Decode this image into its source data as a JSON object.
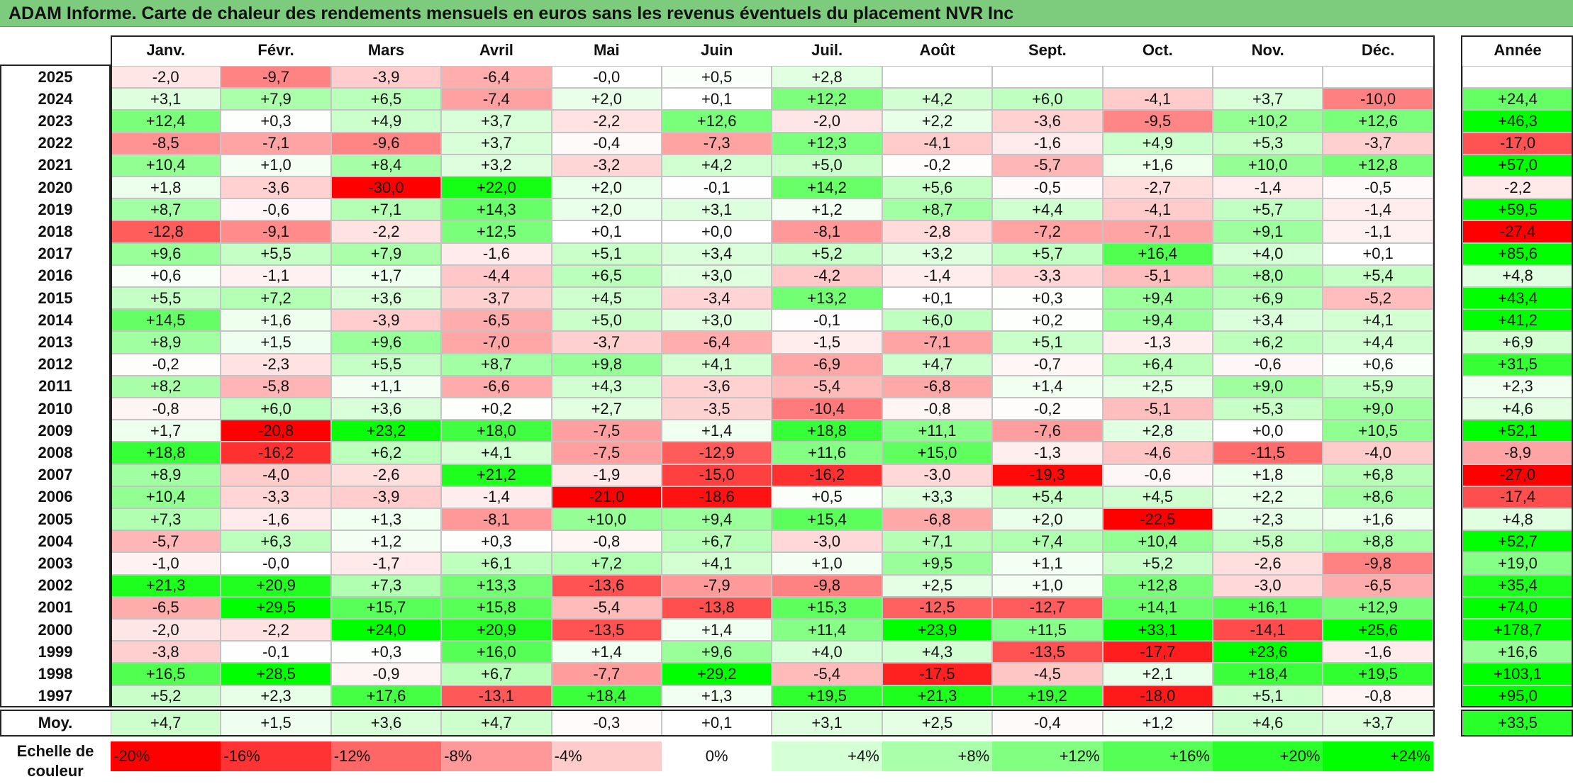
{
  "title": "ADAM Informe. Carte de chaleur des rendements mensuels en euros sans les revenus éventuels du placement NVR Inc",
  "chart_data": {
    "type": "heatmap",
    "title": "ADAM Informe. Carte de chaleur des rendements mensuels en euros sans les revenus éventuels du placement NVR Inc",
    "columns": [
      "Janv.",
      "Févr.",
      "Mars",
      "Avril",
      "Mai",
      "Juin",
      "Juil.",
      "Août",
      "Sept.",
      "Oct.",
      "Nov.",
      "Déc."
    ],
    "year_column_label": "Année",
    "rows": [
      {
        "year": "2025",
        "values": [
          "-2,0",
          "-9,7",
          "-3,9",
          "-6,4",
          "-0,0",
          "+0,5",
          "+2,8",
          "",
          "",
          "",
          "",
          ""
        ],
        "annual": ""
      },
      {
        "year": "2024",
        "values": [
          "+3,1",
          "+7,9",
          "+6,5",
          "-7,4",
          "+2,0",
          "+0,1",
          "+12,2",
          "+4,2",
          "+6,0",
          "-4,1",
          "+3,7",
          "-10,0"
        ],
        "annual": "+24,4"
      },
      {
        "year": "2023",
        "values": [
          "+12,4",
          "+0,3",
          "+4,9",
          "+3,7",
          "-2,2",
          "+12,6",
          "-2,0",
          "+2,2",
          "-3,6",
          "-9,5",
          "+10,2",
          "+12,6"
        ],
        "annual": "+46,3"
      },
      {
        "year": "2022",
        "values": [
          "-8,5",
          "-7,1",
          "-9,6",
          "+3,7",
          "-0,4",
          "-7,3",
          "+12,3",
          "-4,1",
          "-1,6",
          "+4,9",
          "+5,3",
          "-3,7"
        ],
        "annual": "-17,0"
      },
      {
        "year": "2021",
        "values": [
          "+10,4",
          "+1,0",
          "+8,4",
          "+3,2",
          "-3,2",
          "+4,2",
          "+5,0",
          "-0,2",
          "-5,7",
          "+1,6",
          "+10,0",
          "+12,8"
        ],
        "annual": "+57,0"
      },
      {
        "year": "2020",
        "values": [
          "+1,8",
          "-3,6",
          "-30,0",
          "+22,0",
          "+2,0",
          "-0,1",
          "+14,2",
          "+5,6",
          "-0,5",
          "-2,7",
          "-1,4",
          "-0,5"
        ],
        "annual": "-2,2"
      },
      {
        "year": "2019",
        "values": [
          "+8,7",
          "-0,6",
          "+7,1",
          "+14,3",
          "+2,0",
          "+3,1",
          "+1,2",
          "+8,7",
          "+4,4",
          "-4,1",
          "+5,7",
          "-1,4"
        ],
        "annual": "+59,5"
      },
      {
        "year": "2018",
        "values": [
          "-12,8",
          "-9,1",
          "-2,2",
          "+12,5",
          "+0,1",
          "+0,0",
          "-8,1",
          "-2,8",
          "-7,2",
          "-7,1",
          "+9,1",
          "-1,1"
        ],
        "annual": "-27,4"
      },
      {
        "year": "2017",
        "values": [
          "+9,6",
          "+5,5",
          "+7,9",
          "-1,6",
          "+5,1",
          "+3,4",
          "+5,2",
          "+3,2",
          "+5,7",
          "+16,4",
          "+4,0",
          "+0,1"
        ],
        "annual": "+85,6"
      },
      {
        "year": "2016",
        "values": [
          "+0,6",
          "-1,1",
          "+1,7",
          "-4,4",
          "+6,5",
          "+3,0",
          "-4,2",
          "-1,4",
          "-3,3",
          "-5,1",
          "+8,0",
          "+5,4"
        ],
        "annual": "+4,8"
      },
      {
        "year": "2015",
        "values": [
          "+5,5",
          "+7,2",
          "+3,6",
          "-3,7",
          "+4,5",
          "-3,4",
          "+13,2",
          "+0,1",
          "+0,3",
          "+9,4",
          "+6,9",
          "-5,2"
        ],
        "annual": "+43,4"
      },
      {
        "year": "2014",
        "values": [
          "+14,5",
          "+1,6",
          "-3,9",
          "-6,5",
          "+5,0",
          "+3,0",
          "-0,1",
          "+6,0",
          "+0,2",
          "+9,4",
          "+3,4",
          "+4,1"
        ],
        "annual": "+41,2"
      },
      {
        "year": "2013",
        "values": [
          "+8,9",
          "+1,5",
          "+9,6",
          "-7,0",
          "-3,7",
          "-6,4",
          "-1,5",
          "-7,1",
          "+5,1",
          "-1,3",
          "+6,2",
          "+4,4"
        ],
        "annual": "+6,9"
      },
      {
        "year": "2012",
        "values": [
          "-0,2",
          "-2,3",
          "+5,5",
          "+8,7",
          "+9,8",
          "+4,1",
          "-6,9",
          "+4,7",
          "-0,7",
          "+6,4",
          "-0,6",
          "+0,6"
        ],
        "annual": "+31,5"
      },
      {
        "year": "2011",
        "values": [
          "+8,2",
          "-5,8",
          "+1,1",
          "-6,6",
          "+4,3",
          "-3,6",
          "-5,4",
          "-6,8",
          "+1,4",
          "+2,5",
          "+9,0",
          "+5,9"
        ],
        "annual": "+2,3"
      },
      {
        "year": "2010",
        "values": [
          "-0,8",
          "+6,0",
          "+3,6",
          "+0,2",
          "+2,7",
          "-3,5",
          "-10,4",
          "-0,8",
          "-0,2",
          "-5,1",
          "+5,3",
          "+9,0"
        ],
        "annual": "+4,6"
      },
      {
        "year": "2009",
        "values": [
          "+1,7",
          "-20,8",
          "+23,2",
          "+18,0",
          "-7,5",
          "+1,4",
          "+18,8",
          "+11,1",
          "-7,6",
          "+2,8",
          "+0,0",
          "+10,5"
        ],
        "annual": "+52,1"
      },
      {
        "year": "2008",
        "values": [
          "+18,8",
          "-16,2",
          "+6,2",
          "+4,1",
          "-7,5",
          "-12,9",
          "+11,6",
          "+15,0",
          "-1,3",
          "-4,6",
          "-11,5",
          "-4,0"
        ],
        "annual": "-8,9"
      },
      {
        "year": "2007",
        "values": [
          "+8,9",
          "-4,0",
          "-2,6",
          "+21,2",
          "-1,9",
          "-15,0",
          "-16,2",
          "-3,0",
          "-19,3",
          "-0,6",
          "+1,8",
          "+6,8"
        ],
        "annual": "-27,0"
      },
      {
        "year": "2006",
        "values": [
          "+10,4",
          "-3,3",
          "-3,9",
          "-1,4",
          "-21,0",
          "-18,6",
          "+0,5",
          "+3,3",
          "+5,4",
          "+4,5",
          "+2,2",
          "+8,6"
        ],
        "annual": "-17,4"
      },
      {
        "year": "2005",
        "values": [
          "+7,3",
          "-1,6",
          "+1,3",
          "-8,1",
          "+10,0",
          "+9,4",
          "+15,4",
          "-6,8",
          "+2,0",
          "-22,5",
          "+2,3",
          "+1,6"
        ],
        "annual": "+4,8"
      },
      {
        "year": "2004",
        "values": [
          "-5,7",
          "+6,3",
          "+1,2",
          "+0,3",
          "-0,8",
          "+6,7",
          "-3,0",
          "+7,1",
          "+7,4",
          "+10,4",
          "+5,8",
          "+8,8"
        ],
        "annual": "+52,7"
      },
      {
        "year": "2003",
        "values": [
          "-1,0",
          "-0,0",
          "-1,7",
          "+6,1",
          "+7,2",
          "+4,1",
          "+1,0",
          "+9,5",
          "+1,1",
          "+5,2",
          "-2,6",
          "-9,8"
        ],
        "annual": "+19,0"
      },
      {
        "year": "2002",
        "values": [
          "+21,3",
          "+20,9",
          "+7,3",
          "+13,3",
          "-13,6",
          "-7,9",
          "-9,8",
          "+2,5",
          "+1,0",
          "+12,8",
          "-3,0",
          "-6,5"
        ],
        "annual": "+35,4"
      },
      {
        "year": "2001",
        "values": [
          "-6,5",
          "+29,5",
          "+15,7",
          "+15,8",
          "-5,4",
          "-13,8",
          "+15,3",
          "-12,5",
          "-12,7",
          "+14,1",
          "+16,1",
          "+12,9"
        ],
        "annual": "+74,0"
      },
      {
        "year": "2000",
        "values": [
          "-2,0",
          "-2,2",
          "+24,0",
          "+20,9",
          "-13,5",
          "+1,4",
          "+11,4",
          "+23,9",
          "+11,5",
          "+33,1",
          "-14,1",
          "+25,6"
        ],
        "annual": "+178,7"
      },
      {
        "year": "1999",
        "values": [
          "-3,8",
          "-0,1",
          "+0,3",
          "+16,0",
          "+1,4",
          "+9,6",
          "+4,0",
          "+4,3",
          "-13,5",
          "-17,7",
          "+23,6",
          "-1,6"
        ],
        "annual": "+16,6"
      },
      {
        "year": "1998",
        "values": [
          "+16,5",
          "+28,5",
          "-0,9",
          "+6,7",
          "-7,7",
          "+29,2",
          "-5,4",
          "-17,5",
          "-4,5",
          "+2,1",
          "+18,4",
          "+19,5"
        ],
        "annual": "+103,1"
      },
      {
        "year": "1997",
        "values": [
          "+5,2",
          "+2,3",
          "+17,6",
          "-13,1",
          "+18,4",
          "+1,3",
          "+19,5",
          "+21,3",
          "+19,2",
          "-18,0",
          "+5,1",
          "-0,8"
        ],
        "annual": "+95,0"
      }
    ],
    "average": {
      "label": "Moy.",
      "values": [
        "+4,7",
        "+1,5",
        "+3,6",
        "+4,7",
        "-0,3",
        "+0,1",
        "+3,1",
        "+2,5",
        "-0,4",
        "+1,2",
        "+4,6",
        "+3,7"
      ],
      "annual": "+33,5"
    },
    "legend": {
      "label": "Echelle de\ncouleur",
      "items": [
        {
          "label": "-20%",
          "value": -20,
          "align": "left"
        },
        {
          "label": "-16%",
          "value": -16,
          "align": "left"
        },
        {
          "label": "-12%",
          "value": -12,
          "align": "left"
        },
        {
          "label": "-8%",
          "value": -8,
          "align": "left"
        },
        {
          "label": "-4%",
          "value": -4,
          "align": "left"
        },
        {
          "label": "0%",
          "value": 0,
          "align": "center"
        },
        {
          "label": "+4%",
          "value": 4,
          "align": "right"
        },
        {
          "label": "+8%",
          "value": 8,
          "align": "right"
        },
        {
          "label": "+12%",
          "value": 12,
          "align": "right"
        },
        {
          "label": "+16%",
          "value": 16,
          "align": "right"
        },
        {
          "label": "+20%",
          "value": 20,
          "align": "right"
        },
        {
          "label": "+24%",
          "value": 24,
          "align": "right"
        }
      ]
    },
    "colors": {
      "negative": "#ff0000",
      "neutral": "#ffffff",
      "positive": "#00ff00"
    },
    "monthly_scale": {
      "negative_full": 20,
      "positive_full": 24
    },
    "annual_scale": {
      "negative_full": 25,
      "positive_full": 40
    }
  }
}
